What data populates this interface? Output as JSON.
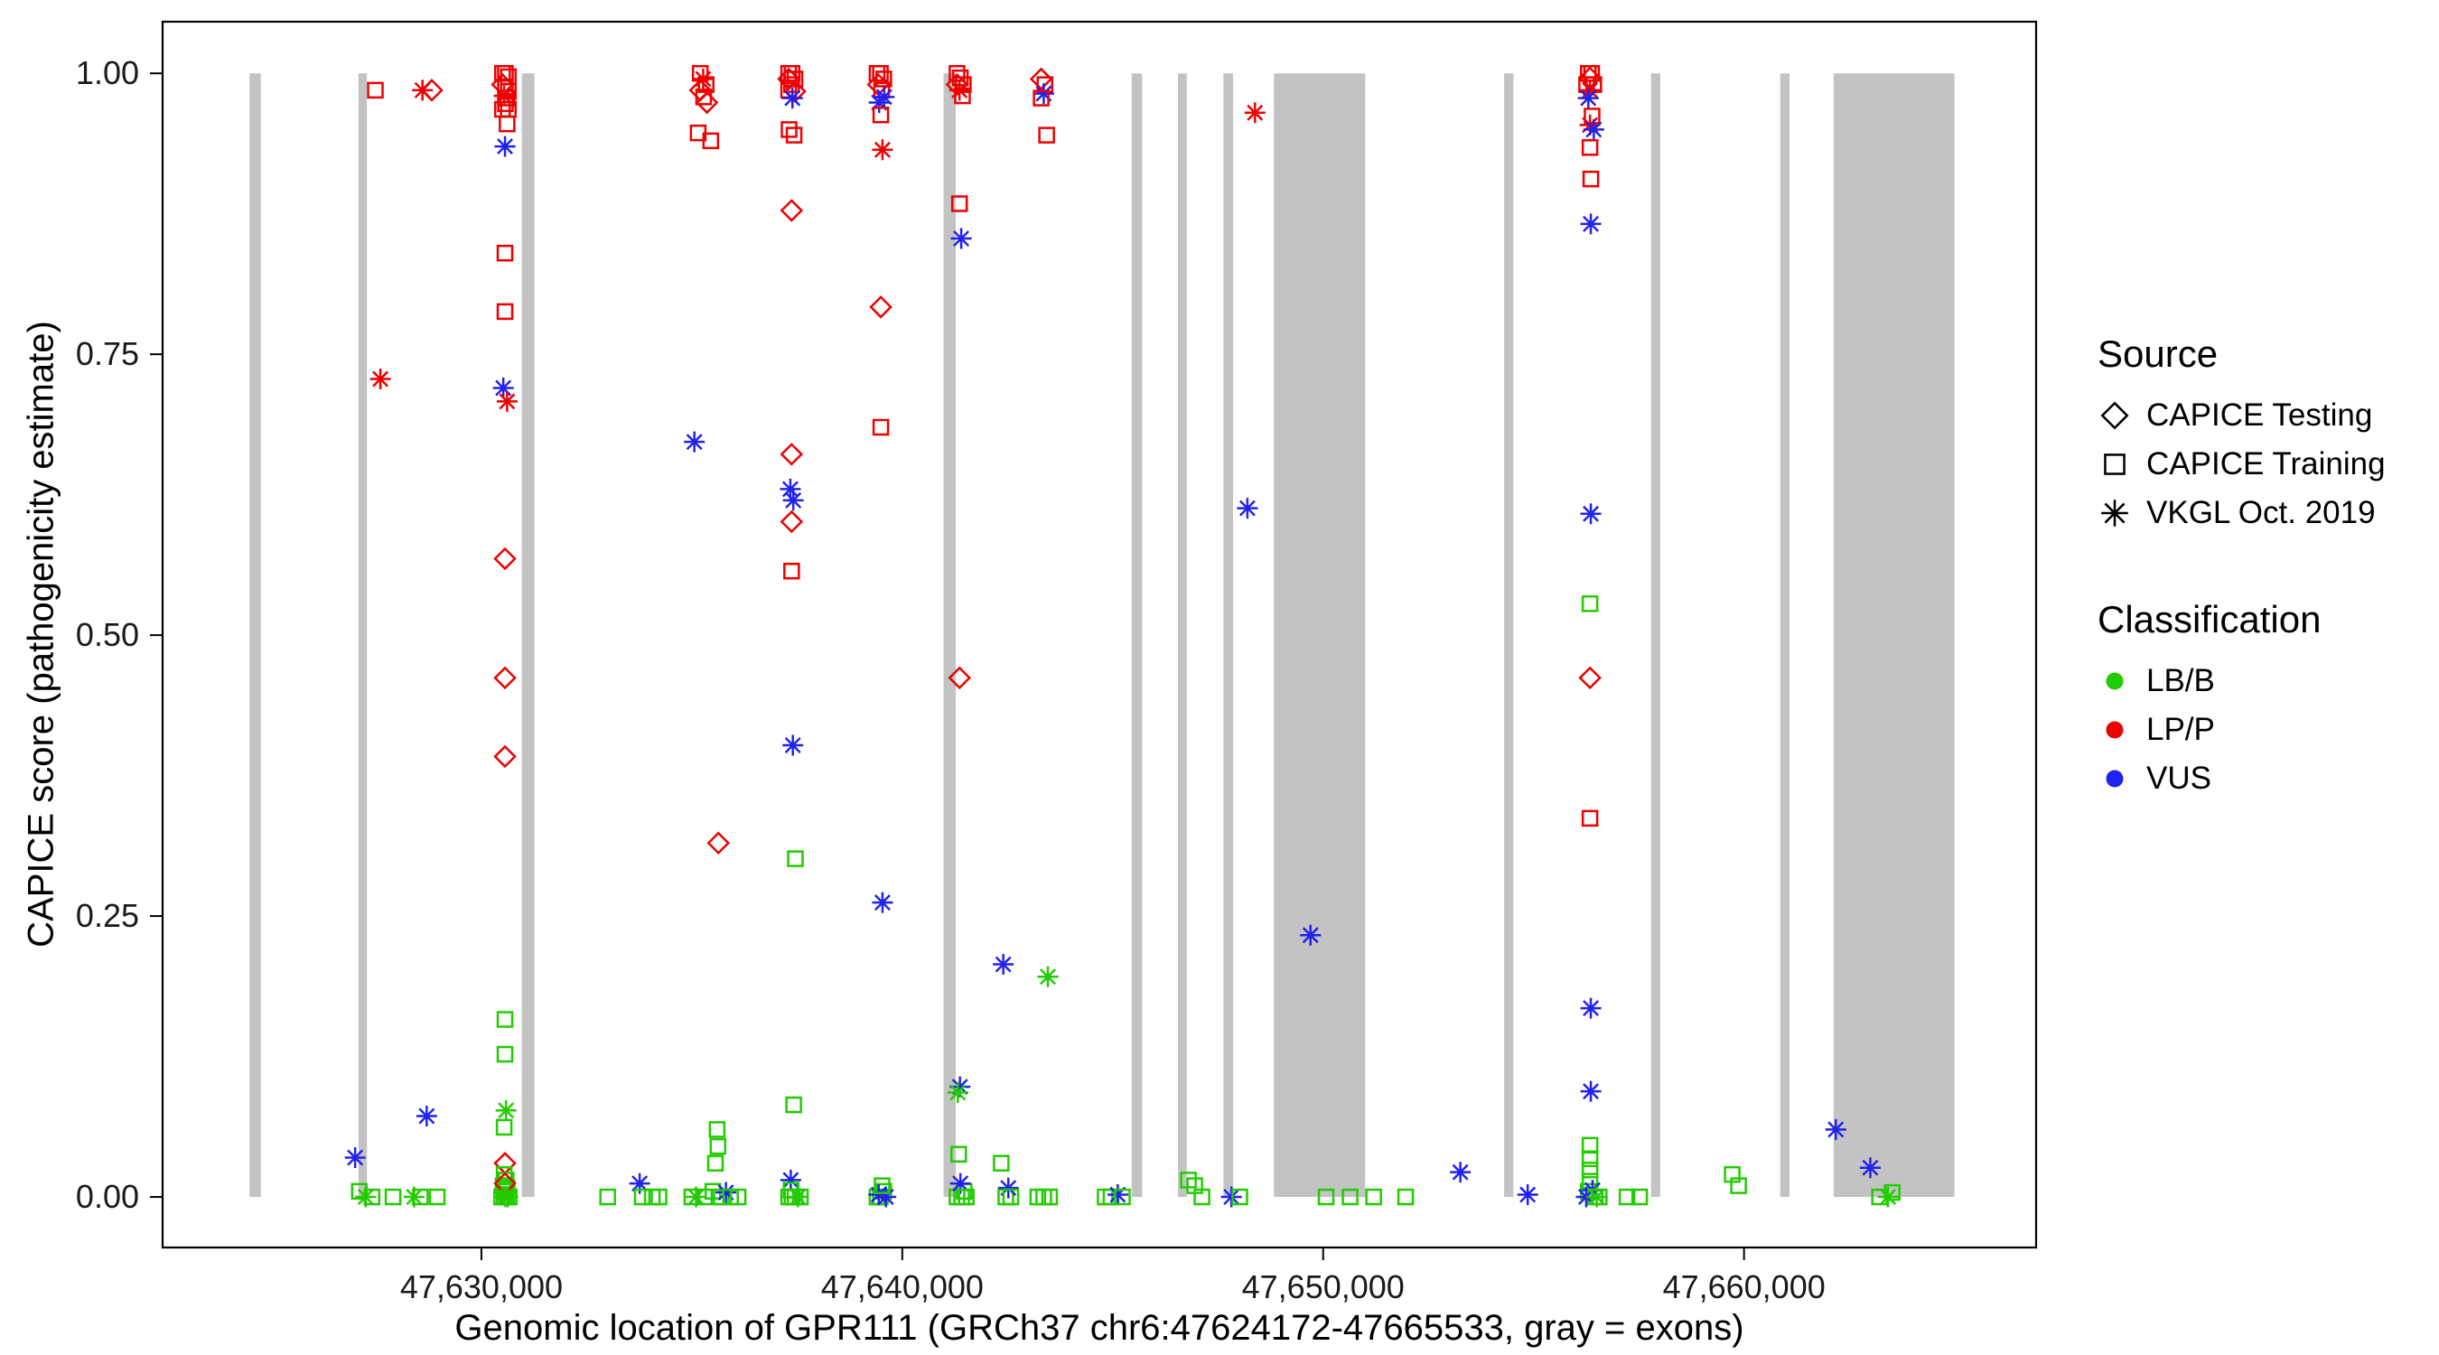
{
  "chart_data": {
    "type": "scatter",
    "xlabel": "Genomic location of GPR111 (GRCh37 chr6:47624172-47665533, gray = exons)",
    "ylabel": "CAPICE score (pathogenicity estimate)",
    "xlim": [
      47622425,
      47666940
    ],
    "ylim": [
      -0.045,
      1.046
    ],
    "grid": false,
    "legend_position": "right",
    "x_ticks": [
      {
        "value": 47630000,
        "label": "47,630,000"
      },
      {
        "value": 47640000,
        "label": "47,640,000"
      },
      {
        "value": 47650000,
        "label": "47,650,000"
      },
      {
        "value": 47660000,
        "label": "47,660,000"
      }
    ],
    "y_ticks": [
      {
        "value": 0.0,
        "label": "0.00"
      },
      {
        "value": 0.25,
        "label": "0.25"
      },
      {
        "value": 0.5,
        "label": "0.50"
      },
      {
        "value": 0.75,
        "label": "0.75"
      },
      {
        "value": 1.0,
        "label": "1.00"
      }
    ],
    "exon_color": "#c3c3c3",
    "exons": [
      [
        47624490,
        47624760
      ],
      [
        47627080,
        47627280
      ],
      [
        47630960,
        47631260
      ],
      [
        47640980,
        47641270
      ],
      [
        47645450,
        47645700
      ],
      [
        47646550,
        47646760
      ],
      [
        47647630,
        47647860
      ],
      [
        47648830,
        47651000
      ],
      [
        47654300,
        47654520
      ],
      [
        47657790,
        47658010
      ],
      [
        47660860,
        47661080
      ],
      [
        47662130,
        47665000
      ]
    ],
    "shape_map": {
      "d": "CAPICE Testing",
      "s": "CAPICE Training",
      "a": "VKGL Oct. 2019"
    },
    "color_map": {
      "g": "#22cc00",
      "r": "#ee0000",
      "b": "#2222ee"
    },
    "points": [
      [
        47627480,
        0.985,
        "s",
        "r"
      ],
      [
        47627600,
        0.728,
        "a",
        "r"
      ],
      [
        47627000,
        0.035,
        "a",
        "b"
      ],
      [
        47627100,
        0.005,
        "s",
        "g"
      ],
      [
        47627400,
        0,
        "s",
        "g"
      ],
      [
        47627900,
        0,
        "s",
        "g"
      ],
      [
        47627250,
        0,
        "a",
        "g"
      ],
      [
        47628600,
        0.985,
        "a",
        "r"
      ],
      [
        47628820,
        0.985,
        "d",
        "r"
      ],
      [
        47628400,
        0,
        "a",
        "g"
      ],
      [
        47628550,
        0,
        "s",
        "g"
      ],
      [
        47628950,
        0,
        "s",
        "g"
      ],
      [
        47628700,
        0.072,
        "a",
        "b"
      ],
      [
        47630500,
        1.0,
        "s",
        "r"
      ],
      [
        47630570,
        1.0,
        "s",
        "r"
      ],
      [
        47630640,
        0.997,
        "s",
        "r"
      ],
      [
        47630500,
        0.99,
        "d",
        "r"
      ],
      [
        47630570,
        0.988,
        "s",
        "r"
      ],
      [
        47630640,
        0.984,
        "s",
        "r"
      ],
      [
        47630540,
        0.98,
        "a",
        "r"
      ],
      [
        47630610,
        0.978,
        "s",
        "r"
      ],
      [
        47630570,
        0.973,
        "s",
        "r"
      ],
      [
        47630500,
        0.968,
        "s",
        "r"
      ],
      [
        47630640,
        0.968,
        "s",
        "r"
      ],
      [
        47630610,
        0.955,
        "s",
        "r"
      ],
      [
        47630560,
        0.935,
        "a",
        "b"
      ],
      [
        47630560,
        0.84,
        "s",
        "r"
      ],
      [
        47630560,
        0.788,
        "s",
        "r"
      ],
      [
        47630520,
        0.72,
        "a",
        "b"
      ],
      [
        47630610,
        0.708,
        "a",
        "r"
      ],
      [
        47630560,
        0.568,
        "d",
        "r"
      ],
      [
        47630560,
        0.462,
        "d",
        "r"
      ],
      [
        47630560,
        0.392,
        "d",
        "r"
      ],
      [
        47630560,
        0.158,
        "s",
        "g"
      ],
      [
        47630560,
        0.127,
        "s",
        "g"
      ],
      [
        47630585,
        0.077,
        "a",
        "g"
      ],
      [
        47630540,
        0.062,
        "s",
        "g"
      ],
      [
        47630560,
        0.03,
        "d",
        "r"
      ],
      [
        47630540,
        0.02,
        "s",
        "g"
      ],
      [
        47630585,
        0.015,
        "s",
        "g"
      ],
      [
        47630515,
        0.01,
        "s",
        "g"
      ],
      [
        47630610,
        0.008,
        "s",
        "g"
      ],
      [
        47630560,
        0.005,
        "s",
        "g"
      ],
      [
        47630480,
        0,
        "s",
        "g"
      ],
      [
        47630540,
        0,
        "s",
        "g"
      ],
      [
        47630600,
        0,
        "s",
        "g"
      ],
      [
        47630660,
        0,
        "s",
        "g"
      ],
      [
        47630560,
        0.012,
        "d",
        "r"
      ],
      [
        47630570,
        0,
        "a",
        "g"
      ],
      [
        47630630,
        0,
        "a",
        "g"
      ],
      [
        47633000,
        0,
        "s",
        "g"
      ],
      [
        47633760,
        0.012,
        "a",
        "b"
      ],
      [
        47633820,
        0,
        "s",
        "g"
      ],
      [
        47634060,
        0,
        "s",
        "g"
      ],
      [
        47634220,
        0,
        "s",
        "g"
      ],
      [
        47635200,
        1.0,
        "s",
        "r"
      ],
      [
        47635270,
        0.995,
        "a",
        "r"
      ],
      [
        47635340,
        0.99,
        "s",
        "r"
      ],
      [
        47635200,
        0.985,
        "d",
        "r"
      ],
      [
        47635280,
        0.979,
        "s",
        "r"
      ],
      [
        47635360,
        0.974,
        "d",
        "r"
      ],
      [
        47635150,
        0.947,
        "s",
        "r"
      ],
      [
        47635450,
        0.94,
        "s",
        "r"
      ],
      [
        47635060,
        0.672,
        "a",
        "b"
      ],
      [
        47635630,
        0.315,
        "d",
        "r"
      ],
      [
        47635600,
        0.06,
        "s",
        "g"
      ],
      [
        47635620,
        0.045,
        "s",
        "g"
      ],
      [
        47635560,
        0.03,
        "s",
        "g"
      ],
      [
        47635000,
        0,
        "s",
        "g"
      ],
      [
        47635100,
        0,
        "a",
        "g"
      ],
      [
        47635300,
        0,
        "s",
        "g"
      ],
      [
        47635500,
        0.005,
        "s",
        "g"
      ],
      [
        47635700,
        0,
        "s",
        "g"
      ],
      [
        47635810,
        0.004,
        "a",
        "b"
      ],
      [
        47635920,
        0,
        "s",
        "g"
      ],
      [
        47636100,
        0,
        "s",
        "g"
      ],
      [
        47637300,
        1.0,
        "s",
        "r"
      ],
      [
        47637380,
        1.0,
        "s",
        "r"
      ],
      [
        47637300,
        0.995,
        "d",
        "r"
      ],
      [
        47637450,
        0.995,
        "s",
        "r"
      ],
      [
        47637370,
        0.99,
        "s",
        "r"
      ],
      [
        47637300,
        0.985,
        "s",
        "r"
      ],
      [
        47637450,
        0.984,
        "d",
        "r"
      ],
      [
        47637390,
        0.978,
        "a",
        "b"
      ],
      [
        47637310,
        0.95,
        "s",
        "r"
      ],
      [
        47637430,
        0.945,
        "s",
        "r"
      ],
      [
        47637370,
        0.878,
        "d",
        "r"
      ],
      [
        47637370,
        0.661,
        "d",
        "r"
      ],
      [
        47637340,
        0.63,
        "a",
        "b"
      ],
      [
        47637410,
        0.62,
        "a",
        "b"
      ],
      [
        47637370,
        0.601,
        "d",
        "r"
      ],
      [
        47637370,
        0.557,
        "s",
        "r"
      ],
      [
        47637400,
        0.402,
        "a",
        "b"
      ],
      [
        47637460,
        0.301,
        "s",
        "g"
      ],
      [
        47637420,
        0.082,
        "s",
        "g"
      ],
      [
        47637350,
        0.015,
        "a",
        "b"
      ],
      [
        47637300,
        0,
        "s",
        "g"
      ],
      [
        47637380,
        0,
        "s",
        "g"
      ],
      [
        47637450,
        0,
        "s",
        "g"
      ],
      [
        47637360,
        0.006,
        "s",
        "g"
      ],
      [
        47637520,
        0,
        "a",
        "g"
      ],
      [
        47637580,
        0,
        "s",
        "g"
      ],
      [
        47639400,
        1.0,
        "s",
        "r"
      ],
      [
        47639480,
        1.0,
        "s",
        "r"
      ],
      [
        47639560,
        0.995,
        "s",
        "r"
      ],
      [
        47639430,
        0.99,
        "d",
        "r"
      ],
      [
        47639510,
        0.985,
        "s",
        "r"
      ],
      [
        47639570,
        0.979,
        "a",
        "b"
      ],
      [
        47639450,
        0.974,
        "a",
        "b"
      ],
      [
        47639490,
        0.963,
        "s",
        "r"
      ],
      [
        47639530,
        0.932,
        "a",
        "r"
      ],
      [
        47639490,
        0.792,
        "d",
        "r"
      ],
      [
        47639490,
        0.685,
        "s",
        "r"
      ],
      [
        47639530,
        0.262,
        "a",
        "b"
      ],
      [
        47639400,
        0,
        "s",
        "g"
      ],
      [
        47639480,
        0,
        "s",
        "g"
      ],
      [
        47639560,
        0.005,
        "s",
        "g"
      ],
      [
        47639440,
        0.002,
        "a",
        "b"
      ],
      [
        47639610,
        0,
        "a",
        "b"
      ],
      [
        47639520,
        0.01,
        "s",
        "g"
      ],
      [
        47641300,
        1.0,
        "s",
        "r"
      ],
      [
        47641380,
        0.996,
        "s",
        "r"
      ],
      [
        47641300,
        0.99,
        "d",
        "r"
      ],
      [
        47641450,
        0.99,
        "s",
        "r"
      ],
      [
        47641360,
        0.985,
        "a",
        "r"
      ],
      [
        47641430,
        0.98,
        "s",
        "r"
      ],
      [
        47641360,
        0.884,
        "s",
        "r"
      ],
      [
        47641400,
        0.853,
        "a",
        "b"
      ],
      [
        47641360,
        0.462,
        "d",
        "r"
      ],
      [
        47641370,
        0.098,
        "a",
        "b"
      ],
      [
        47641320,
        0.093,
        "a",
        "g"
      ],
      [
        47641340,
        0.038,
        "s",
        "g"
      ],
      [
        47641300,
        0,
        "s",
        "g"
      ],
      [
        47641410,
        0,
        "s",
        "g"
      ],
      [
        47641470,
        0.005,
        "s",
        "g"
      ],
      [
        47641380,
        0.012,
        "a",
        "b"
      ],
      [
        47641520,
        0,
        "s",
        "g"
      ],
      [
        47642400,
        0.207,
        "a",
        "b"
      ],
      [
        47642350,
        0.03,
        "s",
        "g"
      ],
      [
        47642460,
        0,
        "s",
        "g"
      ],
      [
        47642520,
        0.008,
        "a",
        "b"
      ],
      [
        47642580,
        0,
        "s",
        "g"
      ],
      [
        47643300,
        0.995,
        "d",
        "r"
      ],
      [
        47643390,
        0.99,
        "s",
        "r"
      ],
      [
        47643360,
        0.982,
        "a",
        "b"
      ],
      [
        47643300,
        0.978,
        "s",
        "r"
      ],
      [
        47643430,
        0.945,
        "s",
        "r"
      ],
      [
        47643460,
        0.196,
        "a",
        "g"
      ],
      [
        47643220,
        0,
        "s",
        "g"
      ],
      [
        47643360,
        0,
        "s",
        "g"
      ],
      [
        47643500,
        0,
        "s",
        "g"
      ],
      [
        47644820,
        0,
        "s",
        "g"
      ],
      [
        47644960,
        0,
        "s",
        "g"
      ],
      [
        47645120,
        0.002,
        "a",
        "b"
      ],
      [
        47645230,
        0,
        "s",
        "g"
      ],
      [
        47646800,
        0.015,
        "s",
        "g"
      ],
      [
        47646950,
        0.01,
        "s",
        "g"
      ],
      [
        47647120,
        0,
        "s",
        "g"
      ],
      [
        47647820,
        0,
        "a",
        "b"
      ],
      [
        47648020,
        0,
        "s",
        "g"
      ],
      [
        47648380,
        0.965,
        "a",
        "r"
      ],
      [
        47648200,
        0.613,
        "a",
        "b"
      ],
      [
        47649700,
        0.233,
        "a",
        "b"
      ],
      [
        47650070,
        0,
        "s",
        "g"
      ],
      [
        47650640,
        0,
        "s",
        "g"
      ],
      [
        47651200,
        0,
        "s",
        "g"
      ],
      [
        47651960,
        0,
        "s",
        "g"
      ],
      [
        47653260,
        0.022,
        "a",
        "b"
      ],
      [
        47654860,
        0.002,
        "a",
        "b"
      ],
      [
        47656300,
        1.0,
        "s",
        "r"
      ],
      [
        47656380,
        1.0,
        "s",
        "r"
      ],
      [
        47656340,
        0.996,
        "d",
        "r"
      ],
      [
        47656260,
        0.99,
        "s",
        "r"
      ],
      [
        47656430,
        0.99,
        "s",
        "r"
      ],
      [
        47656340,
        0.985,
        "a",
        "r"
      ],
      [
        47656300,
        0.978,
        "a",
        "b"
      ],
      [
        47656390,
        0.962,
        "s",
        "r"
      ],
      [
        47656340,
        0.954,
        "a",
        "r"
      ],
      [
        47656430,
        0.95,
        "a",
        "b"
      ],
      [
        47656340,
        0.934,
        "s",
        "r"
      ],
      [
        47656360,
        0.906,
        "s",
        "r"
      ],
      [
        47656360,
        0.866,
        "a",
        "b"
      ],
      [
        47656360,
        0.608,
        "a",
        "b"
      ],
      [
        47656340,
        0.528,
        "s",
        "g"
      ],
      [
        47656340,
        0.462,
        "d",
        "r"
      ],
      [
        47656340,
        0.337,
        "s",
        "r"
      ],
      [
        47656360,
        0.168,
        "a",
        "b"
      ],
      [
        47656360,
        0.094,
        "a",
        "b"
      ],
      [
        47656340,
        0.046,
        "s",
        "g"
      ],
      [
        47656340,
        0.034,
        "s",
        "g"
      ],
      [
        47656340,
        0.024,
        "s",
        "g"
      ],
      [
        47656340,
        0.014,
        "s",
        "g"
      ],
      [
        47656300,
        0.005,
        "s",
        "g"
      ],
      [
        47656400,
        0.006,
        "a",
        "b"
      ],
      [
        47656460,
        0,
        "s",
        "g"
      ],
      [
        47656250,
        0,
        "a",
        "b"
      ],
      [
        47656500,
        0,
        "a",
        "g"
      ],
      [
        47656560,
        0,
        "s",
        "g"
      ],
      [
        47657220,
        0,
        "s",
        "g"
      ],
      [
        47657520,
        0,
        "s",
        "g"
      ],
      [
        47659720,
        0.02,
        "s",
        "g"
      ],
      [
        47659870,
        0.01,
        "s",
        "g"
      ],
      [
        47662180,
        0.06,
        "a",
        "b"
      ],
      [
        47663000,
        0.026,
        "a",
        "b"
      ],
      [
        47663220,
        0,
        "s",
        "g"
      ],
      [
        47663420,
        0,
        "a",
        "g"
      ],
      [
        47663520,
        0.004,
        "s",
        "g"
      ]
    ]
  },
  "legend": {
    "source_title": "Source",
    "source_items": [
      {
        "label": "CAPICE Testing",
        "shape": "diamond"
      },
      {
        "label": "CAPICE Training",
        "shape": "square"
      },
      {
        "label": "VKGL Oct. 2019",
        "shape": "asterisk"
      }
    ],
    "classification_title": "Classification",
    "classification_items": [
      {
        "label": "LB/B",
        "color": "#22cc00"
      },
      {
        "label": "LP/P",
        "color": "#ee0000"
      },
      {
        "label": "VUS",
        "color": "#2222ee"
      }
    ]
  }
}
